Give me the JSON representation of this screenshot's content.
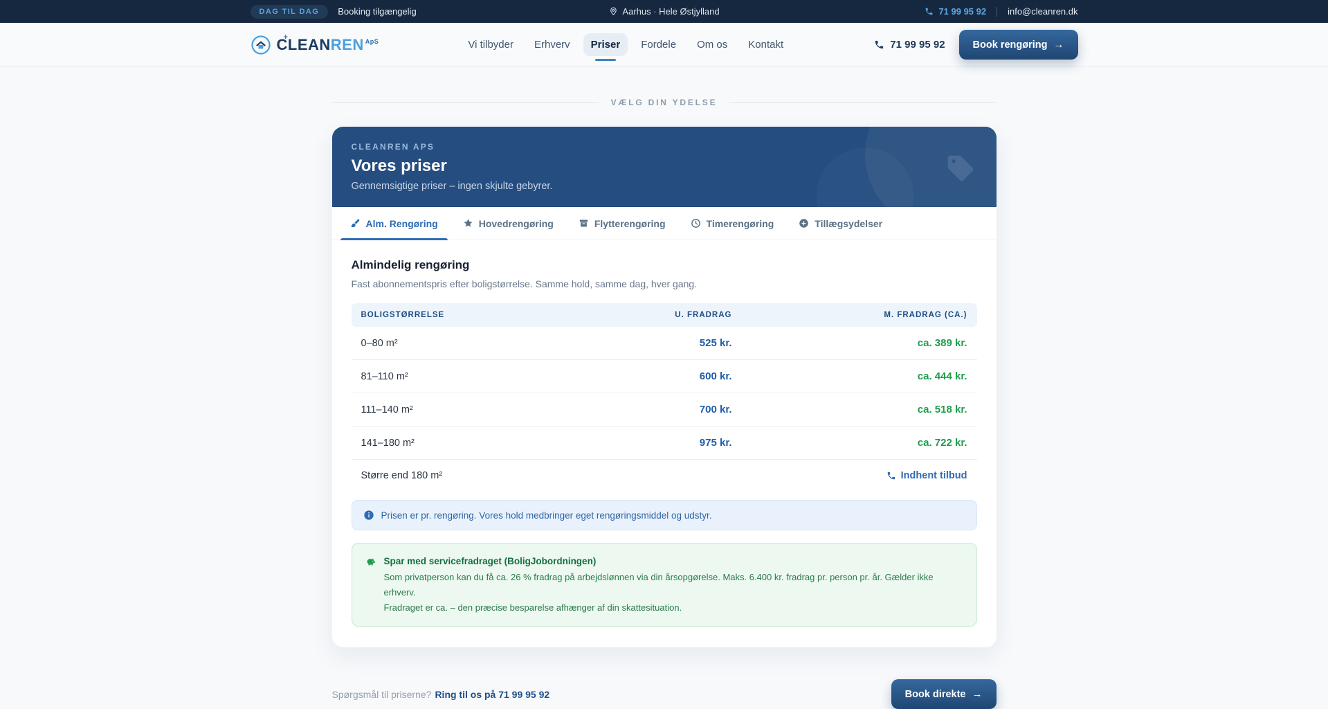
{
  "colors": {
    "topbar_bg": "#16283f",
    "hero_bg": "#254d80",
    "accent_blue": "#2e6cb3",
    "price_blue": "#1e5ea8",
    "savings_green": "#1f9d4d",
    "link_navy": "#1d4e89"
  },
  "topbar": {
    "badge": "DAG TIL DAG",
    "availability": "Booking tilgængelig",
    "location": "Aarhus · Hele Østjylland",
    "phone": "71 99 95 92",
    "email": "info@cleanren.dk"
  },
  "header": {
    "logo_primary": "CLEAN",
    "logo_secondary": "REN",
    "logo_suffix": "ApS",
    "logo_spark": "+",
    "nav": [
      {
        "label": "Vi tilbyder",
        "active": false
      },
      {
        "label": "Erhverv",
        "active": false
      },
      {
        "label": "Priser",
        "active": true
      },
      {
        "label": "Fordele",
        "active": false
      },
      {
        "label": "Om os",
        "active": false
      },
      {
        "label": "Kontakt",
        "active": false
      }
    ],
    "phone": "71 99 95 92",
    "cta_label": "Book rengøring",
    "cta_arrow": "→"
  },
  "section_label": "VÆLG DIN YDELSE",
  "hero": {
    "eyebrow": "CLEANREN APS",
    "title": "Vores priser",
    "subtitle": "Gennemsigtige priser – ingen skjulte gebyrer."
  },
  "tabs": [
    {
      "label": "Alm. Rengøring",
      "icon": "brush-icon",
      "active": true
    },
    {
      "label": "Hovedrengøring",
      "icon": "star-icon",
      "active": false
    },
    {
      "label": "Flytterengøring",
      "icon": "box-icon",
      "active": false
    },
    {
      "label": "Timerengøring",
      "icon": "clock-icon",
      "active": false
    },
    {
      "label": "Tillægsydelser",
      "icon": "plus-circle-icon",
      "active": false
    }
  ],
  "pricing": {
    "title": "Almindelig rengøring",
    "subtitle": "Fast abonnementspris efter boligstørrelse. Samme hold, samme dag, hver gang.",
    "columns": [
      "BOLIGSTØRRELSE",
      "U. FRADRAG",
      "M. FRADRAG (CA.)"
    ],
    "rows": [
      {
        "size": "0–80 m²",
        "price": "525 kr.",
        "deducted": "ca. 389 kr."
      },
      {
        "size": "81–110 m²",
        "price": "600 kr.",
        "deducted": "ca. 444 kr."
      },
      {
        "size": "111–140 m²",
        "price": "700 kr.",
        "deducted": "ca. 518 kr."
      },
      {
        "size": "141–180 m²",
        "price": "975 kr.",
        "deducted": "ca. 722 kr."
      }
    ],
    "custom_row": {
      "size": "Større end 180 m²",
      "link_label": "Indhent tilbud"
    },
    "note": "Prisen er pr. rengøring. Vores hold medbringer eget rengøringsmiddel og udstyr.",
    "savings": {
      "title": "Spar med servicefradraget (BoligJobordningen)",
      "line1": "Som privatperson kan du få ca. 26 % fradrag på arbejdslønnen via din årsopgørelse. Maks. 6.400 kr. fradrag pr. person pr. år. Gælder ikke erhverv.",
      "line2": "Fradraget er ca. – den præcise besparelse afhænger af din skattesituation."
    }
  },
  "footer": {
    "question": "Spørgsmål til priserne?",
    "link": "Ring til os på 71 99 95 92",
    "cta_label": "Book direkte",
    "cta_arrow": "→"
  }
}
